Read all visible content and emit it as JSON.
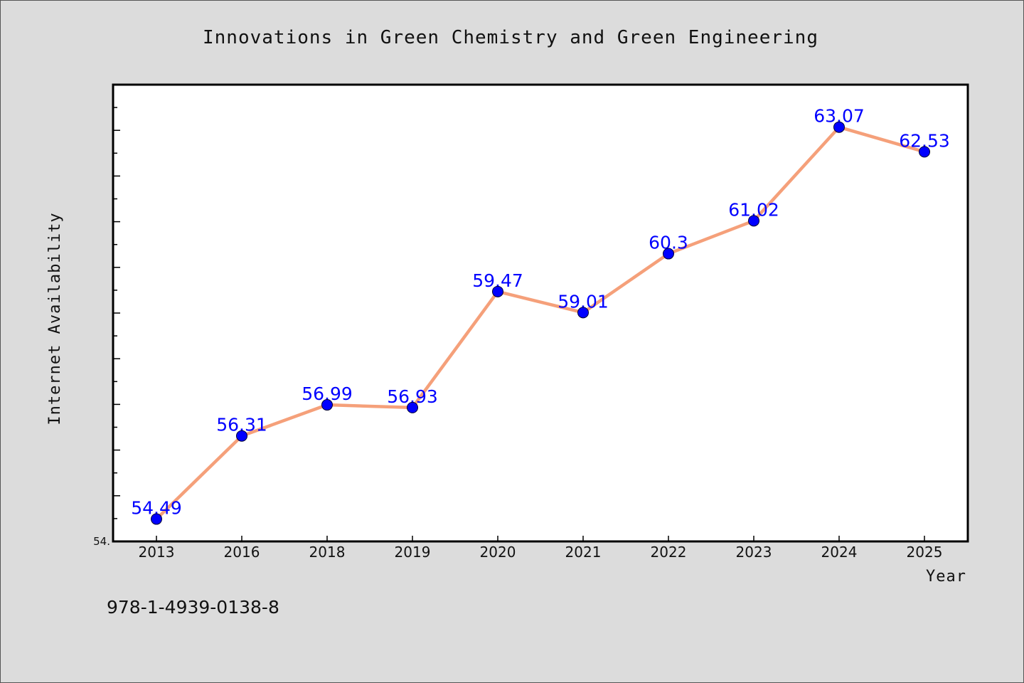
{
  "chart_data": {
    "type": "line",
    "title": "Innovations in Green Chemistry and Green Engineering",
    "xlabel": "Year",
    "ylabel": "Internet Availability",
    "categories": [
      "2013",
      "2016",
      "2018",
      "2019",
      "2020",
      "2021",
      "2022",
      "2023",
      "2024",
      "2025"
    ],
    "values": [
      54.49,
      56.31,
      56.99,
      56.93,
      59.47,
      59.01,
      60.3,
      61.02,
      63.07,
      62.53
    ],
    "data_labels": [
      "54.49",
      "56.31",
      "56.99",
      "56.93",
      "59.47",
      "59.01",
      "60.3",
      "61.02",
      "63.07",
      "62.53"
    ],
    "ylim": [
      54,
      64
    ],
    "ytick_labels": [
      "54."
    ],
    "grid": false,
    "line_color": "#f5a07a",
    "marker_color": "#0000ff",
    "label_color": "#0000ff"
  },
  "footer": {
    "isbn": "978-1-4939-0138-8"
  }
}
